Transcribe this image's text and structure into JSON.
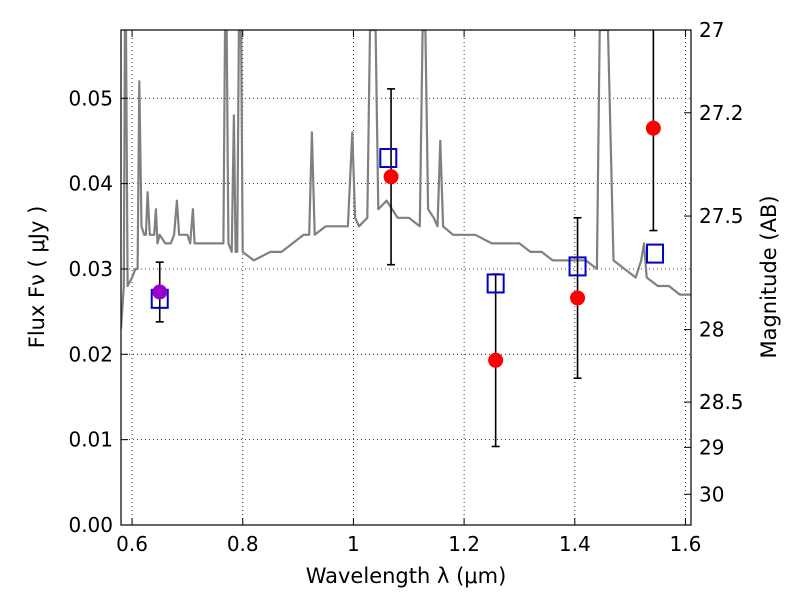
{
  "chart_data": {
    "type": "scatter",
    "xlabel": "Wavelength  λ (μm)",
    "ylabel": "Flux  Fν  ( μJy )",
    "ylabel_right": "Magnitude (AB)",
    "xlim": [
      0.58,
      1.61
    ],
    "ylim": [
      0.0,
      0.058
    ],
    "grid": true,
    "x_ticks": [
      {
        "v": 0.6,
        "label": "0.6"
      },
      {
        "v": 0.8,
        "label": "0.8"
      },
      {
        "v": 1.0,
        "label": "1"
      },
      {
        "v": 1.2,
        "label": "1.2"
      },
      {
        "v": 1.4,
        "label": "1.4"
      },
      {
        "v": 1.6,
        "label": "1.6"
      }
    ],
    "y_ticks": [
      {
        "v": 0.0,
        "label": "0.00"
      },
      {
        "v": 0.01,
        "label": "0.01"
      },
      {
        "v": 0.02,
        "label": "0.02"
      },
      {
        "v": 0.03,
        "label": "0.03"
      },
      {
        "v": 0.04,
        "label": "0.04"
      },
      {
        "v": 0.05,
        "label": "0.05"
      }
    ],
    "right_ticks": [
      {
        "label": "27",
        "flux": 0.058
      },
      {
        "label": "27.2",
        "flux": 0.0483
      },
      {
        "label": "27.5",
        "flux": 0.0362
      },
      {
        "label": "28",
        "flux": 0.0229
      },
      {
        "label": "28.5",
        "flux": 0.0144
      },
      {
        "label": "29",
        "flux": 0.0091
      },
      {
        "label": "30",
        "flux": 0.0036
      }
    ],
    "spectrum": {
      "color": "#808080",
      "points": [
        [
          0.58,
          0.023
        ],
        [
          0.585,
          0.028
        ],
        [
          0.587,
          0.058
        ],
        [
          0.589,
          0.058
        ],
        [
          0.592,
          0.028
        ],
        [
          0.6,
          0.029
        ],
        [
          0.606,
          0.03
        ],
        [
          0.61,
          0.03
        ],
        [
          0.613,
          0.052
        ],
        [
          0.617,
          0.035
        ],
        [
          0.622,
          0.034
        ],
        [
          0.625,
          0.034
        ],
        [
          0.628,
          0.039
        ],
        [
          0.632,
          0.034
        ],
        [
          0.64,
          0.034
        ],
        [
          0.643,
          0.037
        ],
        [
          0.646,
          0.033
        ],
        [
          0.65,
          0.034
        ],
        [
          0.66,
          0.033
        ],
        [
          0.67,
          0.033
        ],
        [
          0.676,
          0.034
        ],
        [
          0.681,
          0.038
        ],
        [
          0.685,
          0.034
        ],
        [
          0.69,
          0.034
        ],
        [
          0.7,
          0.034
        ],
        [
          0.705,
          0.033
        ],
        [
          0.71,
          0.037
        ],
        [
          0.713,
          0.033
        ],
        [
          0.72,
          0.033
        ],
        [
          0.74,
          0.033
        ],
        [
          0.76,
          0.033
        ],
        [
          0.765,
          0.033
        ],
        [
          0.768,
          0.058
        ],
        [
          0.771,
          0.058
        ],
        [
          0.774,
          0.033
        ],
        [
          0.78,
          0.032
        ],
        [
          0.784,
          0.048
        ],
        [
          0.787,
          0.032
        ],
        [
          0.79,
          0.032
        ],
        [
          0.793,
          0.058
        ],
        [
          0.797,
          0.058
        ],
        [
          0.8,
          0.032
        ],
        [
          0.82,
          0.031
        ],
        [
          0.85,
          0.032
        ],
        [
          0.87,
          0.032
        ],
        [
          0.89,
          0.033
        ],
        [
          0.91,
          0.034
        ],
        [
          0.92,
          0.034
        ],
        [
          0.925,
          0.046
        ],
        [
          0.93,
          0.034
        ],
        [
          0.95,
          0.035
        ],
        [
          0.97,
          0.035
        ],
        [
          0.99,
          0.035
        ],
        [
          0.998,
          0.046
        ],
        [
          1.003,
          0.036
        ],
        [
          1.01,
          0.035
        ],
        [
          1.025,
          0.036
        ],
        [
          1.03,
          0.058
        ],
        [
          1.035,
          0.058
        ],
        [
          1.04,
          0.058
        ],
        [
          1.045,
          0.037
        ],
        [
          1.06,
          0.038
        ],
        [
          1.08,
          0.036
        ],
        [
          1.1,
          0.036
        ],
        [
          1.12,
          0.035
        ],
        [
          1.125,
          0.058
        ],
        [
          1.13,
          0.058
        ],
        [
          1.135,
          0.037
        ],
        [
          1.145,
          0.036
        ],
        [
          1.152,
          0.035
        ],
        [
          1.157,
          0.045
        ],
        [
          1.162,
          0.035
        ],
        [
          1.18,
          0.034
        ],
        [
          1.2,
          0.034
        ],
        [
          1.22,
          0.034
        ],
        [
          1.25,
          0.033
        ],
        [
          1.28,
          0.033
        ],
        [
          1.3,
          0.033
        ],
        [
          1.32,
          0.032
        ],
        [
          1.34,
          0.032
        ],
        [
          1.36,
          0.031
        ],
        [
          1.38,
          0.031
        ],
        [
          1.4,
          0.031
        ],
        [
          1.42,
          0.031
        ],
        [
          1.44,
          0.03
        ],
        [
          1.445,
          0.058
        ],
        [
          1.46,
          0.058
        ],
        [
          1.47,
          0.031
        ],
        [
          1.49,
          0.03
        ],
        [
          1.51,
          0.029
        ],
        [
          1.52,
          0.031
        ],
        [
          1.525,
          0.033
        ],
        [
          1.53,
          0.029
        ],
        [
          1.55,
          0.028
        ],
        [
          1.57,
          0.028
        ],
        [
          1.59,
          0.027
        ],
        [
          1.61,
          0.027
        ]
      ]
    },
    "series": [
      {
        "marker": "circle",
        "color": "#ff0000",
        "points": [
          {
            "x": 0.65,
            "y": 0.0273,
            "lo": 0.0238,
            "hi": 0.0308,
            "color": "#9900cc"
          },
          {
            "x": 1.068,
            "y": 0.0408,
            "lo": 0.0305,
            "hi": 0.0511
          },
          {
            "x": 1.257,
            "y": 0.0193,
            "lo": 0.0092,
            "hi": 0.0294
          },
          {
            "x": 1.405,
            "y": 0.0266,
            "lo": 0.0172,
            "hi": 0.036
          },
          {
            "x": 1.542,
            "y": 0.0465,
            "lo": 0.0345,
            "hi": 0.0585
          }
        ]
      },
      {
        "marker": "square",
        "color": "#0000cc",
        "points": [
          {
            "x": 0.65,
            "y": 0.0265
          },
          {
            "x": 1.063,
            "y": 0.043
          },
          {
            "x": 1.257,
            "y": 0.0283
          },
          {
            "x": 1.405,
            "y": 0.0303
          },
          {
            "x": 1.545,
            "y": 0.0318
          }
        ]
      }
    ]
  }
}
